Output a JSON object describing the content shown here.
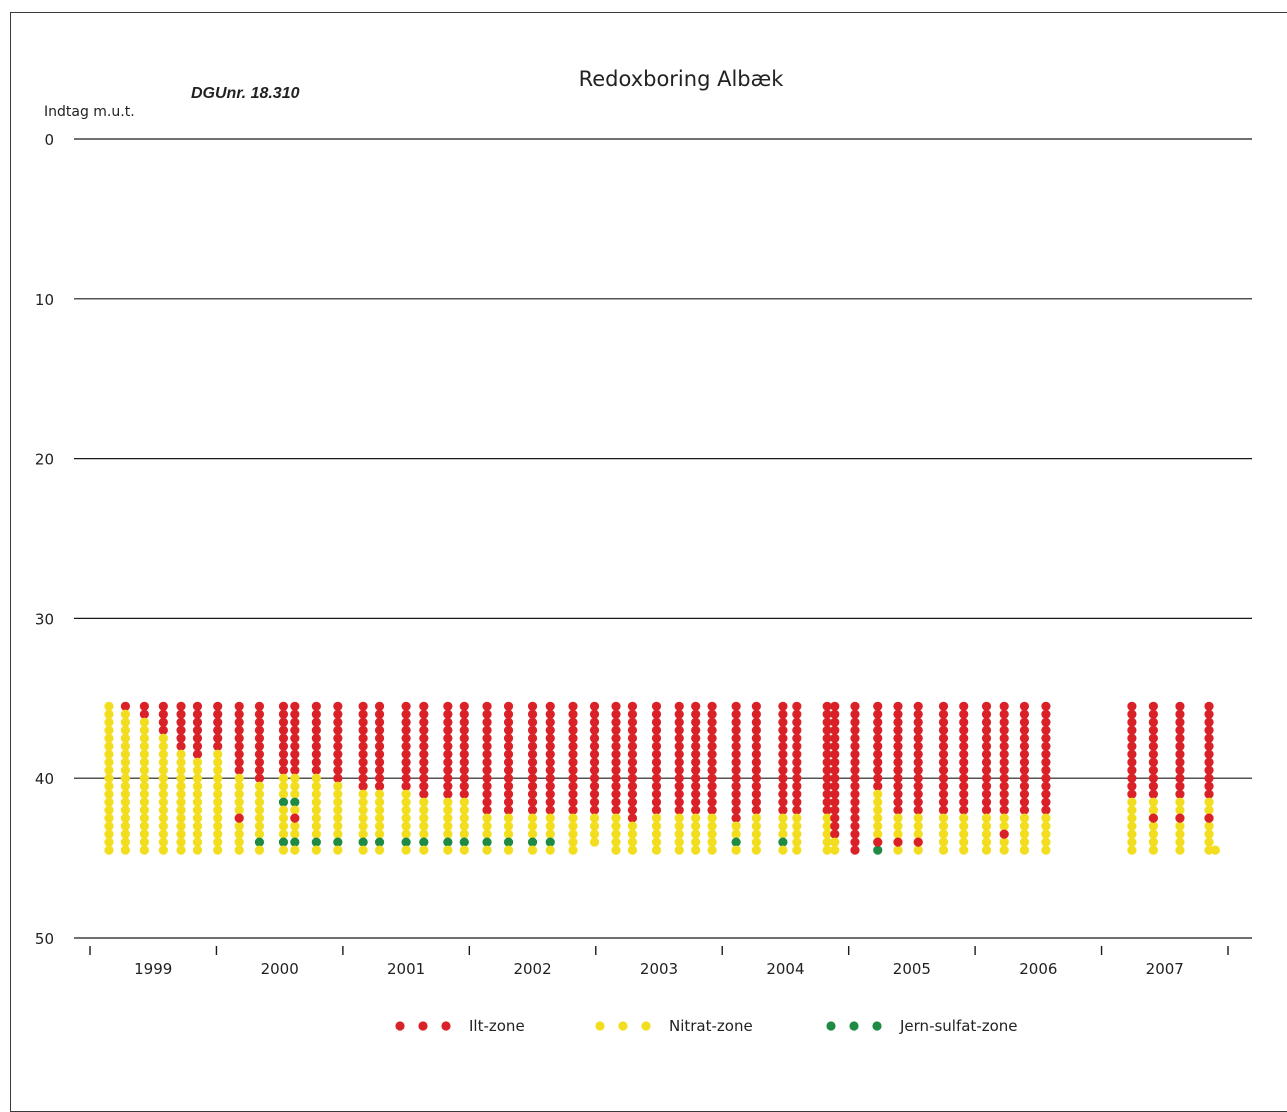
{
  "chart_data": {
    "type": "scatter",
    "title": "Redoxboring Albæk",
    "subtitle": "DGUnr. 18.310",
    "ylabel": "Indtag m.u.t.",
    "ylim": [
      0,
      50
    ],
    "y_inverted": true,
    "yticks": [
      0,
      10,
      20,
      30,
      40,
      50
    ],
    "xlim": [
      1998.45,
      2007.3
    ],
    "xtick_marks": [
      1998.45,
      1999.45,
      2000.45,
      2001.45,
      2002.45,
      2003.45,
      2004.45,
      2005.45,
      2006.45,
      2007.45
    ],
    "xtick_labels": [
      {
        "label": "1999",
        "x": 1998.95
      },
      {
        "label": "2000",
        "x": 1999.95
      },
      {
        "label": "2001",
        "x": 2000.95
      },
      {
        "label": "2002",
        "x": 2001.95
      },
      {
        "label": "2003",
        "x": 2002.95
      },
      {
        "label": "2004",
        "x": 2003.95
      },
      {
        "label": "2005",
        "x": 2004.95
      },
      {
        "label": "2006",
        "x": 2005.95
      },
      {
        "label": "2007",
        "x": 2006.95
      }
    ],
    "grid": "horizontal",
    "legend_position": "bottom",
    "zones": [
      {
        "name": "Ilt-zone",
        "color": "#d92127"
      },
      {
        "name": "Nitrat-zone",
        "color": "#f2dd1e"
      },
      {
        "name": "Jern-sulfat-zone",
        "color": "#1e8a43"
      }
    ],
    "depth_top": 35.5,
    "depth_step": 0.5,
    "samplings": [
      {
        "x": 1998.6,
        "ilt": 0,
        "jern": [],
        "bottom": 44.5
      },
      {
        "x": 1998.73,
        "ilt": 1,
        "jern": [],
        "bottom": 44.5
      },
      {
        "x": 1998.88,
        "ilt": 2,
        "jern": [],
        "bottom": 44.5
      },
      {
        "x": 1999.03,
        "ilt": 4,
        "jern": [],
        "bottom": 44.5
      },
      {
        "x": 1999.17,
        "ilt": 6,
        "jern": [],
        "bottom": 44.5
      },
      {
        "x": 1999.3,
        "ilt": 7,
        "jern": [],
        "bottom": 44.5
      },
      {
        "x": 1999.46,
        "ilt": 6,
        "jern": [],
        "bottom": 44.5
      },
      {
        "x": 1999.63,
        "ilt": 9,
        "jern": [],
        "bottom": 44.5
      },
      {
        "x": 1999.79,
        "ilt": 10,
        "jern": [
          44.0
        ],
        "bottom": 44.5
      },
      {
        "x": 1999.98,
        "ilt": 9,
        "jern": [
          41.5,
          44.0
        ],
        "bottom": 44.5
      },
      {
        "x": 2000.07,
        "ilt": 9,
        "jern": [
          41.5,
          44.0
        ],
        "bottom": 44.5
      },
      {
        "x": 2000.24,
        "ilt": 9,
        "jern": [
          44.0
        ],
        "bottom": 44.5
      },
      {
        "x": 2000.41,
        "ilt": 10,
        "jern": [
          44.0
        ],
        "bottom": 44.5
      },
      {
        "x": 2000.61,
        "ilt": 11,
        "jern": [
          44.0
        ],
        "bottom": 44.5
      },
      {
        "x": 2000.74,
        "ilt": 11,
        "jern": [
          44.0
        ],
        "bottom": 44.5
      },
      {
        "x": 2000.95,
        "ilt": 11,
        "jern": [
          44.0
        ],
        "bottom": 44.5
      },
      {
        "x": 2001.09,
        "ilt": 12,
        "jern": [
          44.0
        ],
        "bottom": 44.5
      },
      {
        "x": 2001.28,
        "ilt": 12,
        "jern": [
          44.0
        ],
        "bottom": 44.5
      },
      {
        "x": 2001.41,
        "ilt": 12,
        "jern": [
          44.0
        ],
        "bottom": 44.5
      },
      {
        "x": 2001.59,
        "ilt": 14,
        "jern": [
          44.0
        ],
        "bottom": 44.5
      },
      {
        "x": 2001.76,
        "ilt": 14,
        "jern": [
          44.0
        ],
        "bottom": 44.5
      },
      {
        "x": 2001.95,
        "ilt": 14,
        "jern": [
          44.0
        ],
        "bottom": 44.5
      },
      {
        "x": 2002.09,
        "ilt": 14,
        "jern": [
          44.0
        ],
        "bottom": 44.5
      },
      {
        "x": 2002.27,
        "ilt": 14,
        "jern": [],
        "bottom": 44.5
      },
      {
        "x": 2002.44,
        "ilt": 14,
        "jern": [],
        "bottom": 44.0
      },
      {
        "x": 2002.61,
        "ilt": 14,
        "jern": [],
        "bottom": 44.5
      },
      {
        "x": 2002.74,
        "ilt": 15,
        "jern": [],
        "bottom": 44.5
      },
      {
        "x": 2002.93,
        "ilt": 14,
        "jern": [],
        "bottom": 44.5
      },
      {
        "x": 2003.11,
        "ilt": 14,
        "jern": [],
        "bottom": 44.5
      },
      {
        "x": 2003.24,
        "ilt": 14,
        "jern": [],
        "bottom": 44.5
      },
      {
        "x": 2003.37,
        "ilt": 14,
        "jern": [],
        "bottom": 44.5
      },
      {
        "x": 2003.56,
        "ilt": 15,
        "jern": [
          44.0
        ],
        "bottom": 44.5
      },
      {
        "x": 2003.72,
        "ilt": 14,
        "jern": [],
        "bottom": 44.5
      },
      {
        "x": 2003.93,
        "ilt": 14,
        "jern": [
          44.0
        ],
        "bottom": 44.5
      },
      {
        "x": 2004.04,
        "ilt": 14,
        "jern": [],
        "bottom": 44.5
      },
      {
        "x": 2004.28,
        "ilt": 14,
        "jern": [],
        "bottom": 44.5
      },
      {
        "x": 2004.34,
        "ilt": 17,
        "jern": [],
        "bottom": 44.5
      },
      {
        "x": 2004.5,
        "ilt": 19,
        "jern": [],
        "bottom": 44.5
      },
      {
        "x": 2004.68,
        "ilt": 11,
        "jern": [
          44.5
        ],
        "bottom": 44.5
      },
      {
        "x": 2004.84,
        "ilt": 14,
        "jern": [],
        "bottom": 44.5
      },
      {
        "x": 2005.0,
        "ilt": 14,
        "jern": [],
        "bottom": 44.5
      },
      {
        "x": 2005.2,
        "ilt": 14,
        "jern": [],
        "bottom": 44.5
      },
      {
        "x": 2005.36,
        "ilt": 14,
        "jern": [],
        "bottom": 44.5
      },
      {
        "x": 2005.54,
        "ilt": 14,
        "jern": [],
        "bottom": 44.5
      },
      {
        "x": 2005.68,
        "ilt": 14,
        "jern": [],
        "bottom": 44.5
      },
      {
        "x": 2005.84,
        "ilt": 14,
        "jern": [],
        "bottom": 44.5
      },
      {
        "x": 2006.01,
        "ilt": 14,
        "jern": [],
        "bottom": 44.5
      },
      {
        "x": 2006.69,
        "ilt": 12,
        "jern": [],
        "bottom": 44.5
      },
      {
        "x": 2006.86,
        "ilt": 12,
        "jern": [],
        "bottom": 44.5
      },
      {
        "x": 2007.07,
        "ilt": 12,
        "jern": [],
        "bottom": 44.5
      },
      {
        "x": 2007.3,
        "ilt": 12,
        "jern": [],
        "bottom": 44.5
      }
    ],
    "extra_points": [
      {
        "x": 1999.63,
        "y": 42.5,
        "zone": "Ilt-zone"
      },
      {
        "x": 2000.07,
        "y": 42.5,
        "zone": "Ilt-zone"
      },
      {
        "x": 2004.68,
        "y": 44.0,
        "zone": "Ilt-zone"
      },
      {
        "x": 2004.84,
        "y": 44.0,
        "zone": "Ilt-zone"
      },
      {
        "x": 2005.0,
        "y": 44.0,
        "zone": "Ilt-zone"
      },
      {
        "x": 2005.68,
        "y": 43.5,
        "zone": "Ilt-zone"
      },
      {
        "x": 2006.86,
        "y": 42.5,
        "zone": "Ilt-zone"
      },
      {
        "x": 2007.07,
        "y": 42.5,
        "zone": "Ilt-zone"
      },
      {
        "x": 2007.3,
        "y": 42.5,
        "zone": "Ilt-zone"
      },
      {
        "x": 2007.35,
        "y": 44.5,
        "zone": "Nitrat-zone"
      }
    ]
  }
}
